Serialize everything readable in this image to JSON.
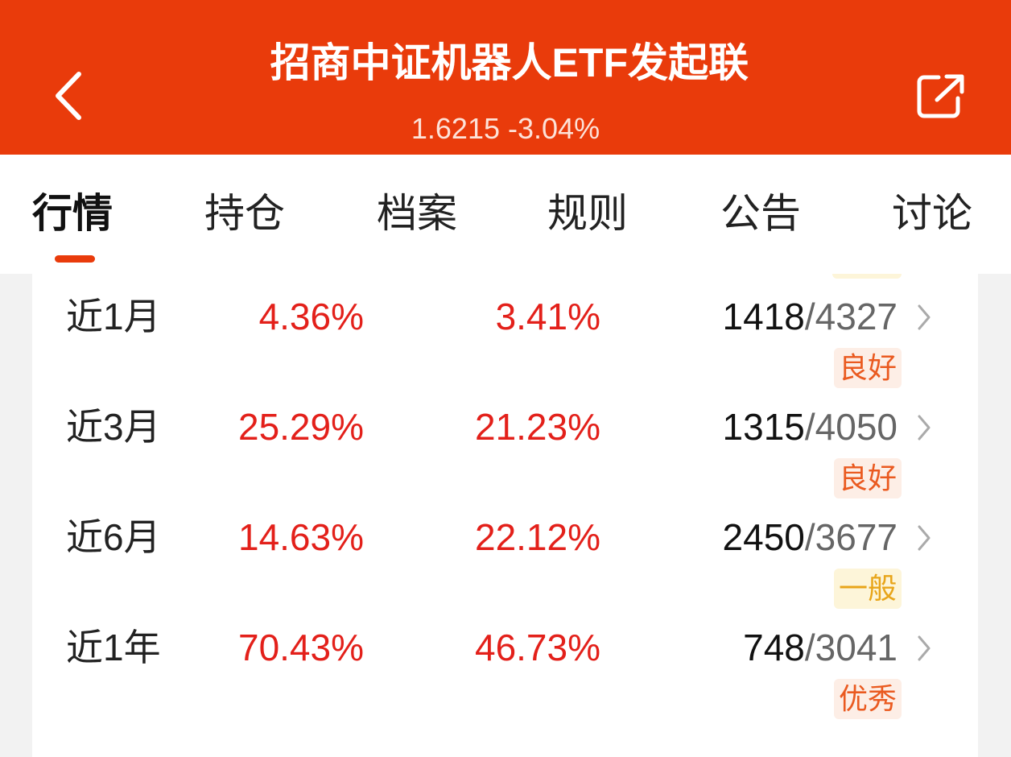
{
  "header": {
    "title": "招商中证机器人ETF发起联",
    "price": "1.6215",
    "change": "-3.04%"
  },
  "tabs": {
    "items": [
      "行情",
      "持仓",
      "档案",
      "规则",
      "公告",
      "讨论"
    ],
    "active": 0
  },
  "table": {
    "rank_separator": "/",
    "rows": [
      {
        "period": "近1月",
        "return": "4.36%",
        "average": "3.41%",
        "rank": "1418",
        "total": "4327",
        "rating": "良好",
        "rating_level": "good"
      },
      {
        "period": "近3月",
        "return": "25.29%",
        "average": "21.23%",
        "rank": "1315",
        "total": "4050",
        "rating": "良好",
        "rating_level": "good"
      },
      {
        "period": "近6月",
        "return": "14.63%",
        "average": "22.12%",
        "rank": "2450",
        "total": "3677",
        "rating": "一般",
        "rating_level": "fair"
      },
      {
        "period": "近1年",
        "return": "70.43%",
        "average": "46.73%",
        "rank": "748",
        "total": "3041",
        "rating": "优秀",
        "rating_level": "excellent"
      }
    ]
  }
}
